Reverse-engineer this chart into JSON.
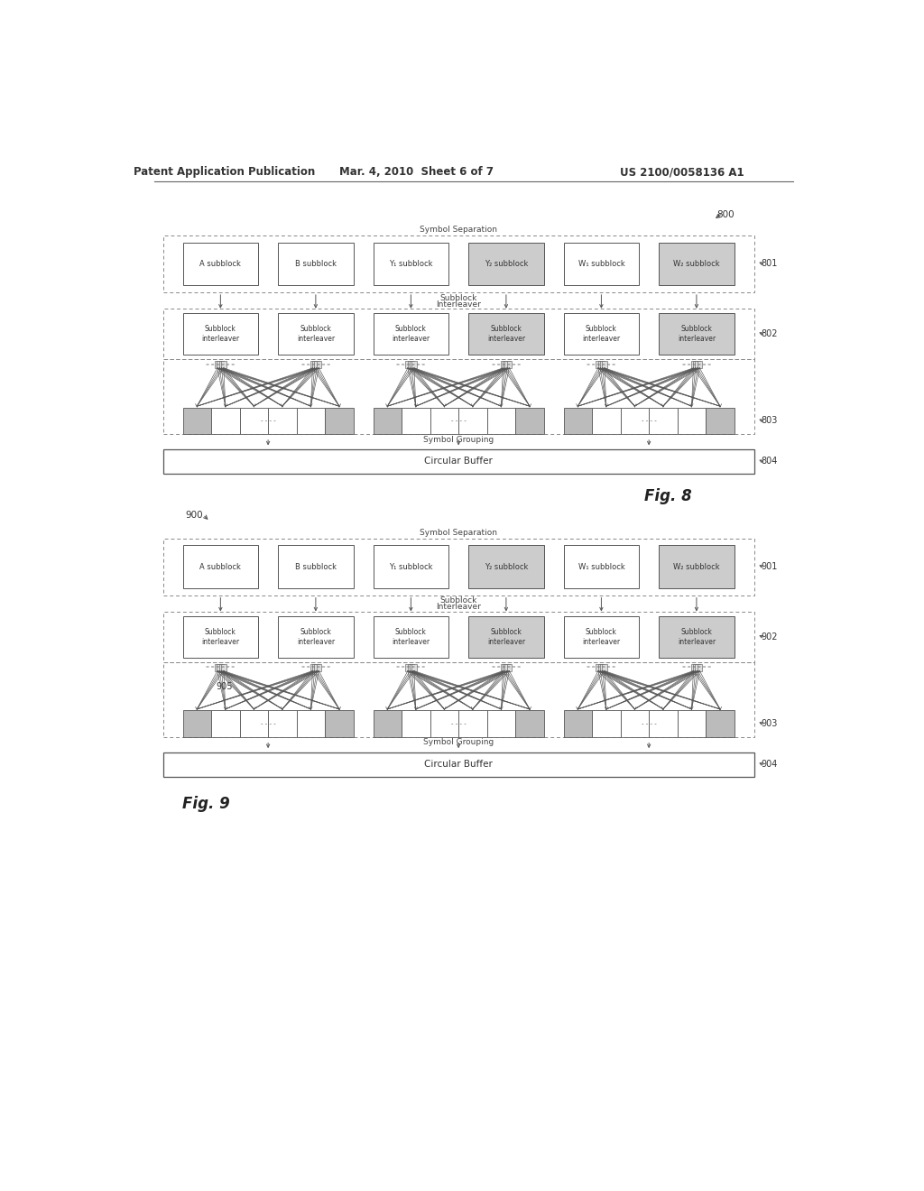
{
  "bg_color": "#ffffff",
  "header_left": "Patent Application Publication",
  "header_mid": "Mar. 4, 2010  Sheet 6 of 7",
  "header_right": "US 2100/0058136 A1",
  "fig8_label": "Fig. 8",
  "fig9_label": "Fig. 9",
  "fig8_number": "800",
  "fig9_number": "900",
  "subblock_labels_top": [
    "A subblock",
    "B subblock",
    "Y₁ subblock",
    "Y₂ subblock",
    "W₁ subblock",
    "W₂ subblock"
  ],
  "interleaver_labels": [
    "Subblock\ninterleaver",
    "Subblock\ninterleaver",
    "Subblock\ninterleaver",
    "Subblock\ninterleaver",
    "Subblock\ninterleaver",
    "Subblock\ninterleaver"
  ],
  "symbol_separation": "Symbol Separation",
  "subblock_interleaver_line1": "Subblock",
  "subblock_interleaver_line2": "Interleaver",
  "symbol_grouping": "Symbol Grouping",
  "circular_buffer": "Circular Buffer",
  "ref_801": "801",
  "ref_802": "802",
  "ref_803": "803",
  "ref_804": "804",
  "ref_901": "901",
  "ref_902": "902",
  "ref_903": "903",
  "ref_904": "904",
  "ref_905": "905",
  "shaded_indices_fig8": [
    3,
    5
  ],
  "shaded_indices_fig9": [
    3,
    5
  ],
  "font_size_header": 8.5,
  "font_size_label": 6.5,
  "font_size_block": 6,
  "font_size_ref": 7,
  "font_size_fignum": 12
}
